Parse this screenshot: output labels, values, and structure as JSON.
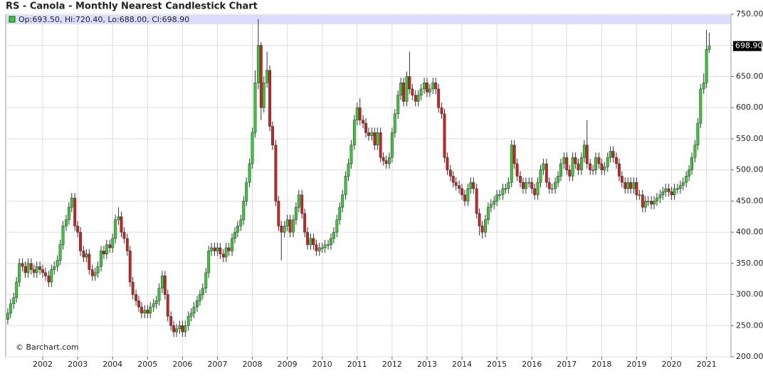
{
  "chart_data": {
    "type": "candlestick",
    "title": "RS - Canola - Monthly Nearest Candlestick Chart",
    "legend_text": "Op:693.50, Hi:720.40, Lo:688.00, Cl:698.90",
    "last_label": "698.90",
    "watermark": "© Barchart.com",
    "up_color": "#33cc33",
    "down_color": "#cc2222",
    "grid": true,
    "xlim": [
      2000.94,
      2021.7
    ],
    "ylim": [
      200,
      750
    ],
    "xticks": [
      2002,
      2003,
      2004,
      2005,
      2006,
      2007,
      2008,
      2009,
      2010,
      2011,
      2012,
      2013,
      2014,
      2015,
      2016,
      2017,
      2018,
      2019,
      2020,
      2021
    ],
    "yticks": [
      {
        "value": 200,
        "label": "200.00"
      },
      {
        "value": 250,
        "label": "250.00"
      },
      {
        "value": 300,
        "label": "300.00"
      },
      {
        "value": 350,
        "label": "350.00"
      },
      {
        "value": 400,
        "label": "400.00"
      },
      {
        "value": 450,
        "label": "450.00"
      },
      {
        "value": 500,
        "label": "500.00"
      },
      {
        "value": 550,
        "label": "550.00"
      },
      {
        "value": 600,
        "label": "600.00"
      },
      {
        "value": 650,
        "label": "650.00"
      },
      {
        "value": 700,
        "label": "700.00"
      },
      {
        "value": 750,
        "label": "750.00"
      }
    ],
    "x": [
      2001.0,
      2001.08,
      2001.17,
      2001.25,
      2001.33,
      2001.42,
      2001.5,
      2001.58,
      2001.67,
      2001.75,
      2001.83,
      2001.92,
      2002.0,
      2002.08,
      2002.17,
      2002.25,
      2002.33,
      2002.42,
      2002.5,
      2002.58,
      2002.67,
      2002.75,
      2002.83,
      2002.92,
      2003.0,
      2003.08,
      2003.17,
      2003.25,
      2003.33,
      2003.42,
      2003.5,
      2003.58,
      2003.67,
      2003.75,
      2003.83,
      2003.92,
      2004.0,
      2004.08,
      2004.17,
      2004.25,
      2004.33,
      2004.42,
      2004.5,
      2004.58,
      2004.67,
      2004.75,
      2004.83,
      2004.92,
      2005.0,
      2005.08,
      2005.17,
      2005.25,
      2005.33,
      2005.42,
      2005.5,
      2005.58,
      2005.67,
      2005.75,
      2005.83,
      2005.92,
      2006.0,
      2006.08,
      2006.17,
      2006.25,
      2006.33,
      2006.42,
      2006.5,
      2006.58,
      2006.67,
      2006.75,
      2006.83,
      2006.92,
      2007.0,
      2007.08,
      2007.17,
      2007.25,
      2007.33,
      2007.42,
      2007.5,
      2007.58,
      2007.67,
      2007.75,
      2007.83,
      2007.92,
      2008.0,
      2008.08,
      2008.17,
      2008.25,
      2008.33,
      2008.42,
      2008.5,
      2008.58,
      2008.67,
      2008.75,
      2008.83,
      2008.92,
      2009.0,
      2009.08,
      2009.17,
      2009.25,
      2009.33,
      2009.42,
      2009.5,
      2009.58,
      2009.67,
      2009.75,
      2009.83,
      2009.92,
      2010.0,
      2010.08,
      2010.17,
      2010.25,
      2010.33,
      2010.42,
      2010.5,
      2010.58,
      2010.67,
      2010.75,
      2010.83,
      2010.92,
      2011.0,
      2011.08,
      2011.17,
      2011.25,
      2011.33,
      2011.42,
      2011.5,
      2011.58,
      2011.67,
      2011.75,
      2011.83,
      2011.92,
      2012.0,
      2012.08,
      2012.17,
      2012.25,
      2012.33,
      2012.42,
      2012.5,
      2012.58,
      2012.67,
      2012.75,
      2012.83,
      2012.92,
      2013.0,
      2013.08,
      2013.17,
      2013.25,
      2013.33,
      2013.42,
      2013.5,
      2013.58,
      2013.67,
      2013.75,
      2013.83,
      2013.92,
      2014.0,
      2014.08,
      2014.17,
      2014.25,
      2014.33,
      2014.42,
      2014.5,
      2014.58,
      2014.67,
      2014.75,
      2014.83,
      2014.92,
      2015.0,
      2015.08,
      2015.17,
      2015.25,
      2015.33,
      2015.42,
      2015.5,
      2015.58,
      2015.67,
      2015.75,
      2015.83,
      2015.92,
      2016.0,
      2016.08,
      2016.17,
      2016.25,
      2016.33,
      2016.42,
      2016.5,
      2016.58,
      2016.67,
      2016.75,
      2016.83,
      2016.92,
      2017.0,
      2017.08,
      2017.17,
      2017.25,
      2017.33,
      2017.42,
      2017.5,
      2017.58,
      2017.67,
      2017.75,
      2017.83,
      2017.92,
      2018.0,
      2018.08,
      2018.17,
      2018.25,
      2018.33,
      2018.42,
      2018.5,
      2018.58,
      2018.67,
      2018.75,
      2018.83,
      2018.92,
      2019.0,
      2019.08,
      2019.17,
      2019.25,
      2019.33,
      2019.42,
      2019.5,
      2019.58,
      2019.67,
      2019.75,
      2019.83,
      2019.92,
      2020.0,
      2020.08,
      2020.17,
      2020.25,
      2020.33,
      2020.42,
      2020.5,
      2020.58,
      2020.67,
      2020.75,
      2020.83,
      2020.92,
      2021.0,
      2021.08
    ],
    "open": [
      260,
      270,
      285,
      295,
      320,
      350,
      345,
      335,
      350,
      340,
      335,
      345,
      340,
      335,
      330,
      320,
      340,
      345,
      355,
      380,
      410,
      420,
      440,
      455,
      410,
      400,
      370,
      360,
      365,
      340,
      330,
      335,
      345,
      370,
      365,
      380,
      375,
      390,
      420,
      425,
      400,
      390,
      370,
      320,
      300,
      290,
      280,
      270,
      275,
      270,
      280,
      285,
      290,
      310,
      330,
      300,
      265,
      250,
      240,
      245,
      250,
      240,
      250,
      265,
      270,
      280,
      290,
      300,
      310,
      335,
      370,
      375,
      370,
      375,
      365,
      360,
      375,
      370,
      390,
      400,
      410,
      420,
      450,
      480,
      510,
      560,
      640,
      700,
      600,
      640,
      660,
      570,
      540,
      450,
      410,
      400,
      410,
      420,
      400,
      420,
      440,
      460,
      430,
      400,
      380,
      390,
      380,
      370,
      375,
      375,
      380,
      380,
      390,
      400,
      420,
      440,
      460,
      490,
      510,
      540,
      580,
      600,
      580,
      575,
      560,
      555,
      560,
      540,
      560,
      520,
      515,
      510,
      520,
      560,
      590,
      620,
      640,
      610,
      650,
      630,
      620,
      610,
      620,
      630,
      640,
      625,
      630,
      640,
      630,
      600,
      590,
      520,
      500,
      490,
      480,
      475,
      470,
      460,
      450,
      470,
      480,
      470,
      430,
      410,
      400,
      420,
      440,
      445,
      450,
      460,
      460,
      470,
      470,
      480,
      540,
      510,
      490,
      480,
      470,
      480,
      480,
      470,
      460,
      480,
      500,
      510,
      480,
      470,
      470,
      480,
      490,
      510,
      520,
      500,
      490,
      520,
      510,
      500,
      520,
      540,
      510,
      500,
      500,
      520,
      510,
      500,
      505,
      520,
      530,
      520,
      510,
      490,
      480,
      470,
      480,
      470,
      480,
      460,
      460,
      440,
      450,
      450,
      445,
      450,
      455,
      460,
      465,
      470,
      465,
      460,
      470,
      470,
      475,
      480,
      490,
      500,
      520,
      540,
      575,
      630,
      640,
      693.5
    ],
    "high": [
      278,
      293,
      303,
      328,
      358,
      358,
      353,
      358,
      358,
      348,
      353,
      353,
      348,
      343,
      338,
      348,
      353,
      363,
      388,
      418,
      428,
      448,
      463,
      463,
      418,
      408,
      378,
      373,
      373,
      348,
      343,
      353,
      378,
      378,
      388,
      388,
      398,
      428,
      440,
      433,
      408,
      398,
      378,
      328,
      308,
      298,
      288,
      283,
      283,
      288,
      293,
      298,
      318,
      338,
      338,
      308,
      273,
      258,
      253,
      258,
      258,
      258,
      273,
      278,
      288,
      298,
      308,
      318,
      343,
      378,
      383,
      383,
      383,
      383,
      373,
      383,
      383,
      398,
      408,
      418,
      428,
      458,
      488,
      518,
      568,
      660,
      742,
      705,
      650,
      690,
      668,
      578,
      548,
      458,
      418,
      418,
      428,
      428,
      428,
      448,
      468,
      468,
      438,
      408,
      398,
      398,
      388,
      383,
      383,
      388,
      388,
      398,
      408,
      428,
      448,
      468,
      498,
      518,
      548,
      588,
      608,
      615,
      588,
      583,
      568,
      568,
      568,
      568,
      568,
      528,
      523,
      528,
      568,
      598,
      628,
      648,
      648,
      658,
      690,
      638,
      628,
      628,
      638,
      648,
      648,
      638,
      648,
      648,
      638,
      608,
      598,
      528,
      508,
      498,
      488,
      483,
      478,
      468,
      478,
      488,
      488,
      478,
      438,
      418,
      428,
      448,
      453,
      458,
      468,
      468,
      478,
      478,
      488,
      548,
      548,
      518,
      498,
      488,
      488,
      488,
      488,
      478,
      488,
      508,
      518,
      518,
      488,
      478,
      488,
      498,
      518,
      528,
      528,
      508,
      528,
      528,
      518,
      528,
      548,
      580,
      518,
      508,
      528,
      528,
      518,
      513,
      528,
      538,
      538,
      528,
      518,
      498,
      488,
      488,
      488,
      488,
      488,
      468,
      468,
      458,
      458,
      458,
      458,
      463,
      468,
      473,
      478,
      478,
      473,
      478,
      478,
      483,
      488,
      498,
      508,
      528,
      548,
      583,
      638,
      655,
      725,
      720.4
    ],
    "low": [
      252,
      262,
      277,
      287,
      312,
      337,
      327,
      327,
      332,
      327,
      327,
      332,
      327,
      322,
      312,
      312,
      332,
      337,
      347,
      372,
      402,
      412,
      432,
      402,
      392,
      362,
      352,
      352,
      332,
      322,
      322,
      327,
      337,
      357,
      357,
      367,
      367,
      382,
      412,
      392,
      382,
      362,
      312,
      292,
      282,
      272,
      262,
      262,
      262,
      262,
      272,
      277,
      282,
      302,
      292,
      257,
      242,
      232,
      232,
      237,
      232,
      232,
      242,
      257,
      262,
      272,
      282,
      292,
      302,
      327,
      362,
      362,
      362,
      357,
      352,
      352,
      362,
      362,
      382,
      392,
      402,
      412,
      442,
      472,
      502,
      552,
      630,
      580,
      592,
      632,
      562,
      532,
      442,
      402,
      355,
      392,
      402,
      392,
      392,
      412,
      432,
      422,
      392,
      372,
      372,
      372,
      362,
      362,
      367,
      367,
      372,
      372,
      382,
      392,
      412,
      432,
      452,
      482,
      502,
      532,
      572,
      572,
      567,
      552,
      547,
      547,
      532,
      532,
      512,
      507,
      502,
      502,
      512,
      552,
      582,
      612,
      602,
      602,
      622,
      612,
      602,
      602,
      612,
      622,
      617,
      617,
      622,
      622,
      592,
      582,
      512,
      492,
      482,
      472,
      467,
      462,
      452,
      442,
      442,
      462,
      462,
      422,
      395,
      390,
      392,
      412,
      432,
      437,
      442,
      452,
      452,
      462,
      462,
      472,
      502,
      482,
      472,
      462,
      462,
      472,
      462,
      452,
      452,
      472,
      492,
      472,
      462,
      462,
      462,
      472,
      482,
      502,
      492,
      482,
      482,
      502,
      492,
      492,
      512,
      502,
      492,
      492,
      492,
      502,
      492,
      492,
      497,
      512,
      512,
      502,
      482,
      472,
      462,
      462,
      462,
      462,
      452,
      452,
      432,
      432,
      442,
      437,
      437,
      442,
      447,
      452,
      457,
      457,
      452,
      452,
      462,
      462,
      467,
      472,
      482,
      492,
      512,
      532,
      567,
      622,
      632,
      688
    ],
    "close": [
      270,
      285,
      295,
      320,
      350,
      345,
      335,
      350,
      340,
      335,
      345,
      340,
      335,
      330,
      320,
      340,
      345,
      355,
      380,
      410,
      420,
      440,
      455,
      410,
      400,
      370,
      360,
      365,
      340,
      330,
      335,
      345,
      370,
      365,
      380,
      375,
      390,
      420,
      425,
      400,
      390,
      370,
      320,
      300,
      290,
      280,
      270,
      275,
      270,
      280,
      285,
      290,
      310,
      330,
      300,
      265,
      250,
      240,
      245,
      250,
      240,
      250,
      265,
      270,
      280,
      290,
      300,
      310,
      335,
      370,
      375,
      370,
      375,
      365,
      360,
      375,
      370,
      390,
      400,
      410,
      420,
      450,
      480,
      510,
      560,
      640,
      700,
      600,
      640,
      660,
      570,
      540,
      450,
      410,
      400,
      410,
      420,
      400,
      420,
      440,
      460,
      430,
      400,
      380,
      390,
      380,
      370,
      375,
      375,
      380,
      380,
      390,
      400,
      420,
      440,
      460,
      490,
      510,
      540,
      580,
      600,
      580,
      575,
      560,
      555,
      560,
      540,
      560,
      520,
      515,
      510,
      520,
      560,
      590,
      620,
      640,
      610,
      650,
      630,
      620,
      610,
      620,
      630,
      640,
      625,
      630,
      640,
      630,
      600,
      590,
      520,
      500,
      490,
      480,
      475,
      470,
      460,
      450,
      470,
      480,
      470,
      430,
      410,
      400,
      420,
      440,
      445,
      450,
      460,
      460,
      470,
      470,
      480,
      540,
      510,
      490,
      480,
      470,
      480,
      480,
      470,
      460,
      480,
      500,
      510,
      480,
      470,
      470,
      480,
      490,
      510,
      520,
      500,
      490,
      520,
      510,
      500,
      520,
      540,
      510,
      500,
      500,
      520,
      510,
      500,
      505,
      520,
      530,
      520,
      510,
      490,
      480,
      470,
      480,
      470,
      480,
      460,
      460,
      440,
      450,
      450,
      445,
      450,
      455,
      460,
      465,
      470,
      465,
      460,
      470,
      470,
      475,
      480,
      490,
      500,
      520,
      540,
      575,
      630,
      640,
      693.5,
      698.9
    ]
  }
}
